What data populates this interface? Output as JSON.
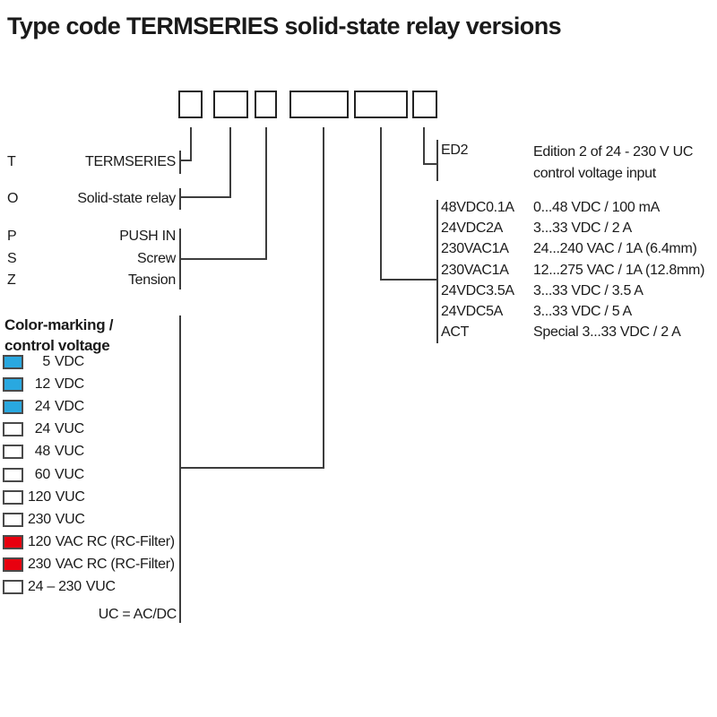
{
  "title": "Type code TERMSERIES solid-state relay versions",
  "colors": {
    "blue": "#29a8e0",
    "red": "#e8000f",
    "white": "#ffffff"
  },
  "left_codes": [
    {
      "letter": "T",
      "label": "TERMSERIES"
    },
    {
      "letter": "O",
      "label": "Solid-state relay"
    },
    {
      "letter": "P",
      "label": "PUSH IN"
    },
    {
      "letter": "S",
      "label": "Screw"
    },
    {
      "letter": "Z",
      "label": "Tension"
    }
  ],
  "color_marking": {
    "title_line1": "Color-marking /",
    "title_line2": "control voltage",
    "items": [
      {
        "color": "blue",
        "num": "5",
        "unit": "VDC"
      },
      {
        "color": "blue",
        "num": "12",
        "unit": "VDC"
      },
      {
        "color": "blue",
        "num": "24",
        "unit": "VDC"
      },
      {
        "color": "white",
        "num": "24",
        "unit": "VUC"
      },
      {
        "color": "white",
        "num": "48",
        "unit": "VUC"
      },
      {
        "color": "white",
        "num": "60",
        "unit": "VUC"
      },
      {
        "color": "white",
        "num": "120",
        "unit": "VUC"
      },
      {
        "color": "white",
        "num": "230",
        "unit": "VUC"
      },
      {
        "color": "red",
        "num": "120",
        "unit": "VAC RC (RC-Filter)"
      },
      {
        "color": "red",
        "num": "230",
        "unit": "VAC RC (RC-Filter)"
      },
      {
        "color": "white",
        "num": "24 – 230",
        "unit": "VUC"
      }
    ],
    "note": "UC = AC/DC"
  },
  "edition": {
    "code": "ED2",
    "desc_line1": "Edition 2 of 24 - 230 V UC",
    "desc_line2": "control voltage input"
  },
  "ratings": [
    {
      "code": "48VDC0.1A",
      "desc": "0...48 VDC / 100 mA"
    },
    {
      "code": "24VDC2A",
      "desc": "3...33 VDC / 2 A"
    },
    {
      "code": "230VAC1A",
      "desc": "24...240 VAC / 1A (6.4mm)"
    },
    {
      "code": "230VAC1A",
      "desc": "12...275 VAC / 1A (12.8mm)"
    },
    {
      "code": "24VDC3.5A",
      "desc": "3...33 VDC / 3.5 A"
    },
    {
      "code": "24VDC5A",
      "desc": "3...33 VDC / 5 A"
    },
    {
      "code": "ACT",
      "desc": "Special 3...33 VDC / 2 A"
    }
  ]
}
